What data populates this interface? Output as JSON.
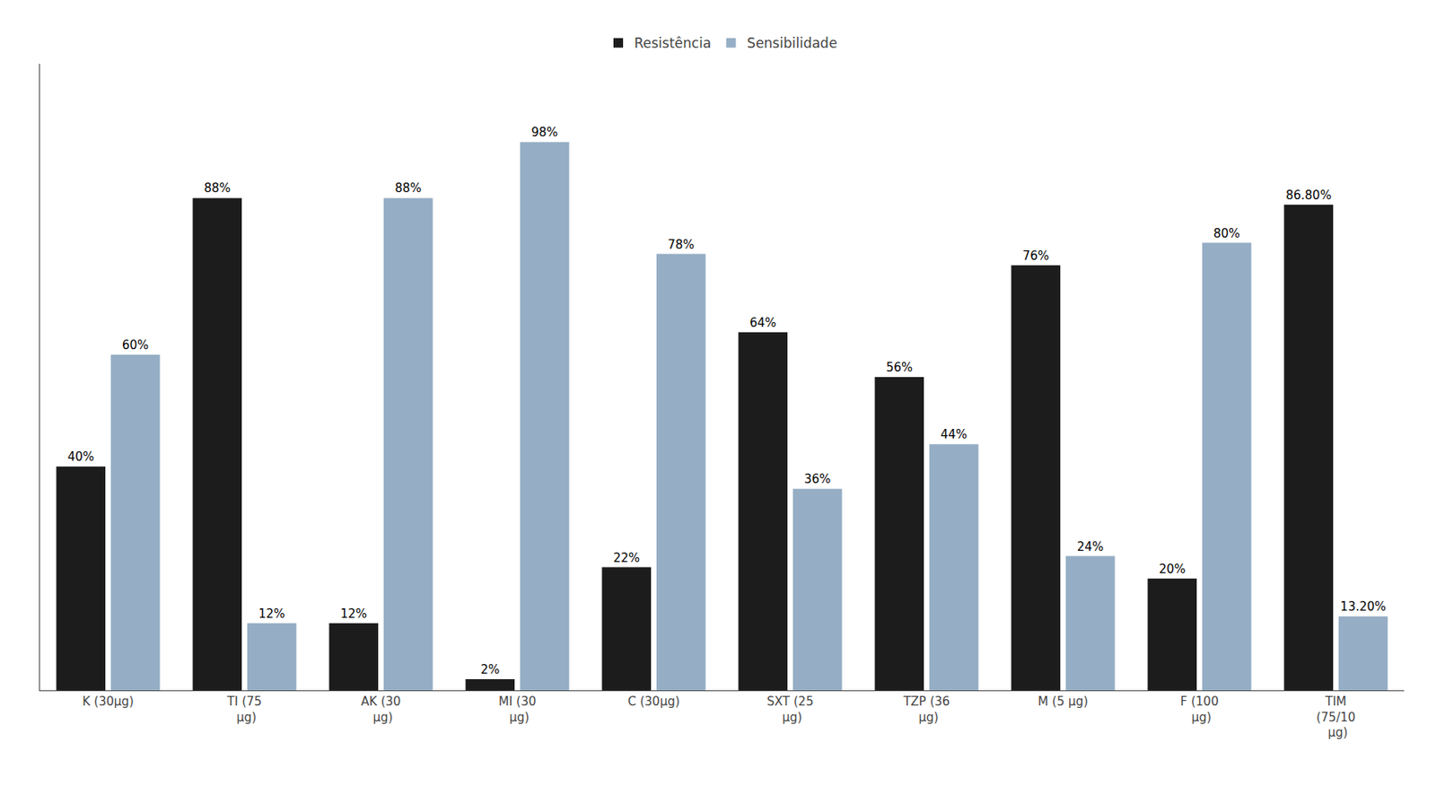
{
  "chart_data": {
    "type": "bar",
    "categories": [
      "K (30μg)",
      "TI (75\n μg)",
      "AK (30\n μg)",
      "MI (30\n μg)",
      "C (30μg)",
      "SXT (25\n μg)",
      "TZP (36\n μg)",
      "M (5 μg)",
      "F (100\n μg)",
      "TIM\n(75/10\n μg)"
    ],
    "series": [
      {
        "name": "Resistência",
        "color": "#1c1c1c",
        "values": [
          40,
          88,
          12,
          2,
          22,
          64,
          56,
          76,
          20,
          86.8
        ],
        "value_labels": [
          "40%",
          "88%",
          "12%",
          "2%",
          "22%",
          "64%",
          "56%",
          "76%",
          "20%",
          "86.80%"
        ]
      },
      {
        "name": "Sensibilidade",
        "color": "#95aec5",
        "values": [
          60,
          12,
          88,
          98,
          78,
          36,
          44,
          24,
          80,
          13.2
        ],
        "value_labels": [
          "60%",
          "12%",
          "88%",
          "98%",
          "78%",
          "36%",
          "44%",
          "24%",
          "80%",
          "13.20%"
        ]
      }
    ],
    "ylim": [
      0,
      112
    ],
    "grid": false,
    "legend": "top",
    "data_labels": true,
    "tick_labels": "x"
  }
}
